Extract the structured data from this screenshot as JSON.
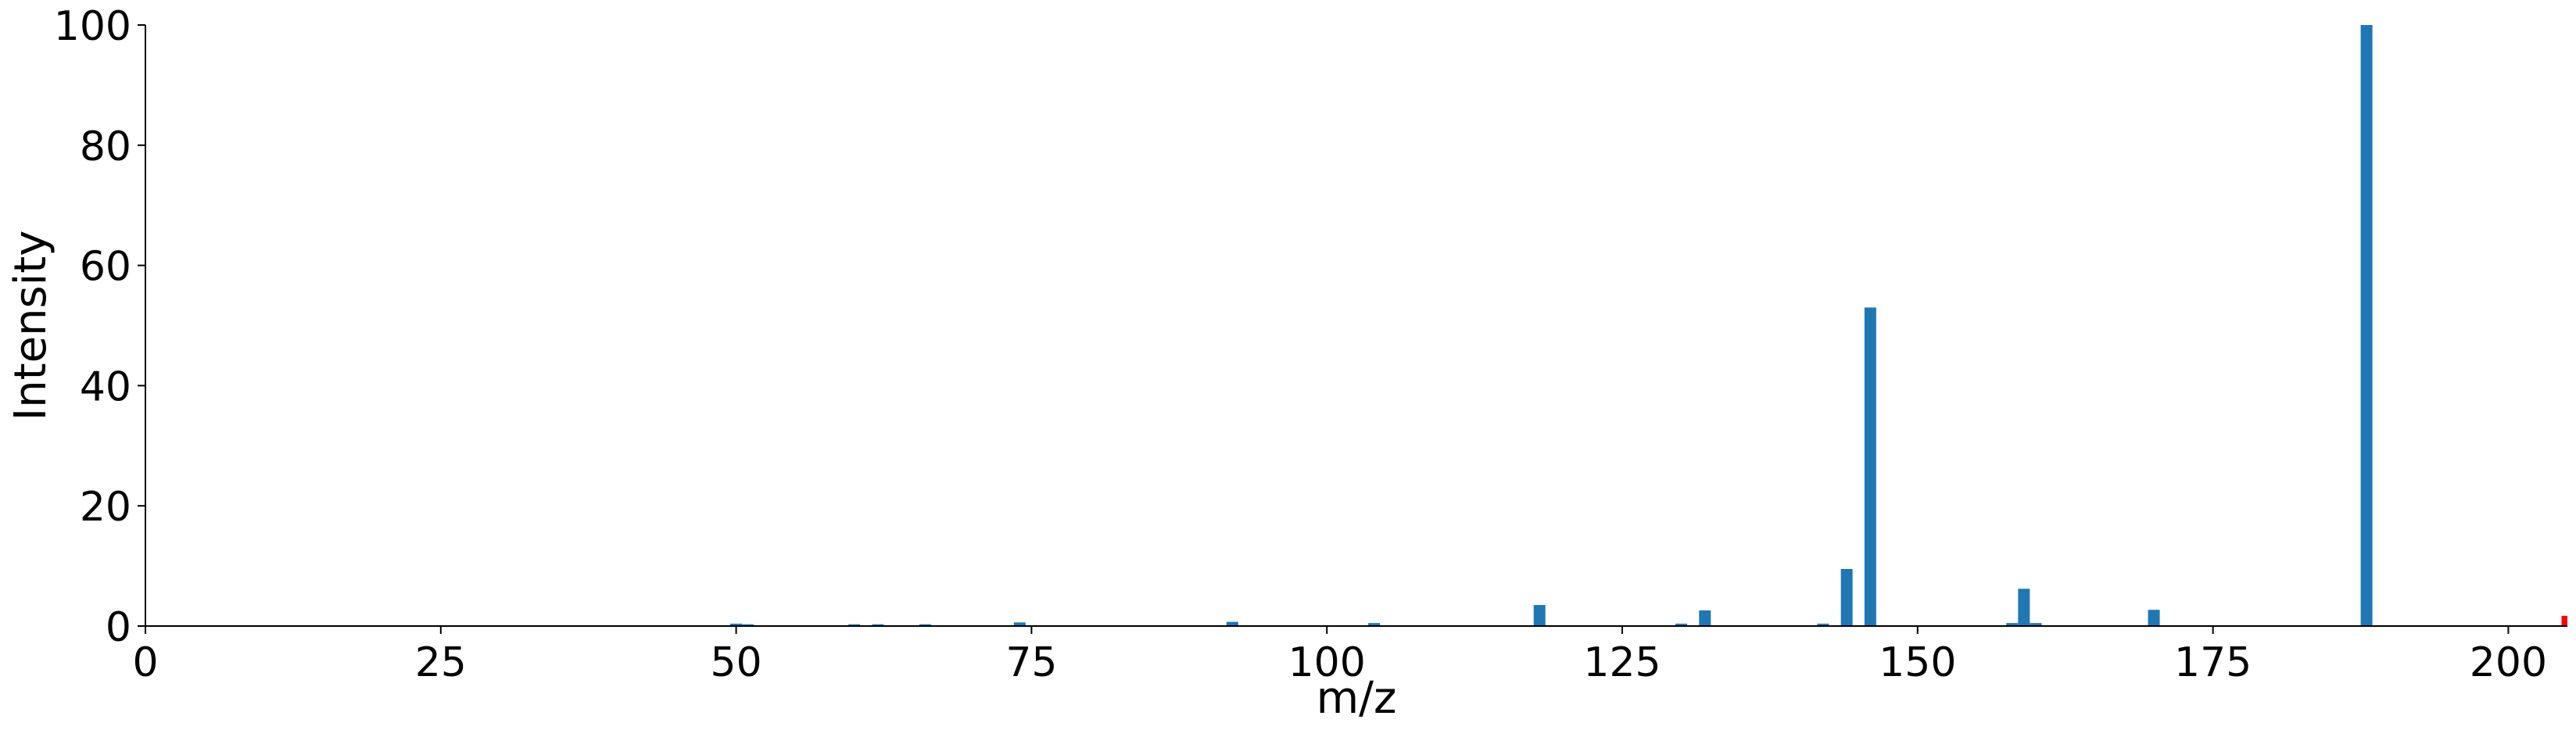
{
  "chart_data": {
    "type": "bar",
    "xlabel": "m/z",
    "ylabel": "Intensity",
    "xlim": [
      0,
      205
    ],
    "ylim": [
      0,
      100
    ],
    "xticks": [
      0,
      25,
      50,
      75,
      100,
      125,
      150,
      175,
      200
    ],
    "yticks": [
      0,
      20,
      40,
      60,
      80,
      100
    ],
    "grid": false,
    "legend": "none",
    "bar_color": "#1f77b4",
    "highlight_color": "#ff0000",
    "peaks": [
      {
        "mz": 50,
        "intensity": 0.4
      },
      {
        "mz": 51,
        "intensity": 0.3
      },
      {
        "mz": 60,
        "intensity": 0.3
      },
      {
        "mz": 62,
        "intensity": 0.3
      },
      {
        "mz": 66,
        "intensity": 0.3
      },
      {
        "mz": 74,
        "intensity": 0.6
      },
      {
        "mz": 92,
        "intensity": 0.7
      },
      {
        "mz": 104,
        "intensity": 0.5
      },
      {
        "mz": 118,
        "intensity": 3.5
      },
      {
        "mz": 130,
        "intensity": 0.4
      },
      {
        "mz": 132,
        "intensity": 2.6
      },
      {
        "mz": 142,
        "intensity": 0.4
      },
      {
        "mz": 144,
        "intensity": 9.5
      },
      {
        "mz": 146,
        "intensity": 53
      },
      {
        "mz": 158,
        "intensity": 0.5
      },
      {
        "mz": 159,
        "intensity": 6.2
      },
      {
        "mz": 160,
        "intensity": 0.5
      },
      {
        "mz": 170,
        "intensity": 2.7
      },
      {
        "mz": 188,
        "intensity": 100
      },
      {
        "mz": 205,
        "intensity": 1.7,
        "highlight": true
      }
    ]
  }
}
